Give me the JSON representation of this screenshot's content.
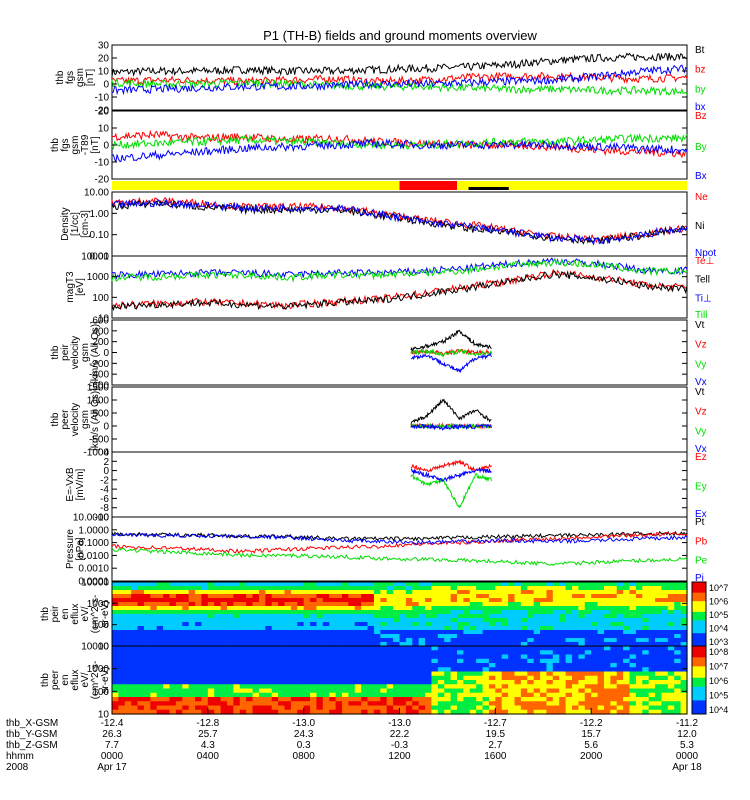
{
  "title": "P1 (TH-B) fields and ground moments overview",
  "colors": {
    "black": "#000000",
    "red": "#ff0000",
    "green": "#00dd00",
    "blue": "#0000ff",
    "yellow": "#ffff00"
  },
  "chart_data": [
    {
      "type": "line",
      "panel": "fgs",
      "ylabel": [
        "thb",
        "fgs",
        "gsm",
        "[nT]"
      ],
      "ylim": [
        -20,
        30
      ],
      "yticks": [
        "30",
        "20",
        "10",
        "0",
        "-10",
        "-20"
      ],
      "series": [
        {
          "name": "Bt",
          "color": "black",
          "values": [
            9,
            10,
            10,
            11,
            10,
            10,
            11,
            12,
            13,
            15,
            18,
            20,
            21,
            21
          ]
        },
        {
          "name": "bz",
          "color": "red",
          "values": [
            2,
            3,
            3,
            2,
            3,
            4,
            2,
            3,
            5,
            6,
            6,
            5,
            4,
            5
          ]
        },
        {
          "name": "by",
          "color": "green",
          "values": [
            1,
            0,
            0,
            1,
            0,
            -1,
            -2,
            -2,
            -3,
            -4,
            -4,
            -5,
            -5,
            -6
          ]
        },
        {
          "name": "bx",
          "color": "blue",
          "values": [
            -5,
            -4,
            -3,
            -2,
            -2,
            -1,
            0,
            0,
            1,
            2,
            3,
            6,
            10,
            12
          ]
        }
      ]
    },
    {
      "type": "line",
      "panel": "fgs-dip",
      "ylabel": [
        "thb",
        "fgs",
        "gsm",
        "-T89",
        "[nT]"
      ],
      "ylim": [
        -20,
        20
      ],
      "yticks": [
        "20",
        "10",
        "0",
        "-10",
        "-20"
      ],
      "series": [
        {
          "name": "Bz",
          "color": "red",
          "values": [
            5,
            6,
            4,
            5,
            3,
            4,
            2,
            1,
            0,
            0,
            -1,
            -3,
            -4,
            -5
          ]
        },
        {
          "name": "By",
          "color": "green",
          "values": [
            0,
            1,
            2,
            3,
            2,
            1,
            0,
            0,
            1,
            2,
            2,
            3,
            4,
            4
          ]
        },
        {
          "name": "Bx",
          "color": "blue",
          "values": [
            -8,
            -6,
            -4,
            -2,
            -1,
            0,
            1,
            0,
            0,
            0,
            0,
            -1,
            -2,
            -3
          ]
        }
      ]
    },
    {
      "type": "bar",
      "panel": "mode-bar",
      "segments": [
        {
          "color": "yellow",
          "from": 0.0,
          "to": 0.5
        },
        {
          "color": "red",
          "from": 0.5,
          "to": 0.6
        },
        {
          "color": "yellow",
          "from": 0.6,
          "to": 1.0
        }
      ]
    },
    {
      "type": "line",
      "panel": "density",
      "log": true,
      "ylabel": [
        "Density",
        "[1/cc]",
        "[cm-3]"
      ],
      "ylim": [
        0.01,
        10
      ],
      "yticks": [
        "10.00",
        "1.00",
        "0.10",
        "0.01"
      ],
      "series": [
        {
          "name": "Ne",
          "color": "red",
          "values": [
            3,
            4,
            3,
            2,
            2,
            2,
            1,
            0.5,
            0.3,
            0.15,
            0.08,
            0.06,
            0.1,
            0.2
          ]
        },
        {
          "name": "Ni",
          "color": "black",
          "values": [
            2,
            3,
            2,
            1.5,
            1.5,
            1.5,
            0.8,
            0.4,
            0.2,
            0.12,
            0.07,
            0.05,
            0.09,
            0.18
          ]
        },
        {
          "name": "Npot",
          "color": "blue",
          "values": [
            2.5,
            3,
            2.5,
            1.8,
            1.8,
            1.8,
            0.9,
            0.4,
            0.25,
            0.13,
            0.07,
            0.05,
            0.09,
            0.2
          ]
        }
      ]
    },
    {
      "type": "line",
      "panel": "temperature",
      "log": true,
      "ylabel": [
        "magT3",
        "[eV]"
      ],
      "ylim": [
        10,
        10000
      ],
      "yticks": [
        "10000",
        "1000",
        "100",
        "10"
      ],
      "series": [
        {
          "name": "Te⊥",
          "color": "red",
          "values": [
            40,
            50,
            60,
            50,
            40,
            60,
            80,
            150,
            300,
            600,
            1500,
            900,
            400,
            300
          ]
        },
        {
          "name": "Tell",
          "color": "black",
          "values": [
            35,
            45,
            55,
            45,
            35,
            55,
            70,
            130,
            260,
            550,
            1300,
            800,
            350,
            250
          ]
        },
        {
          "name": "Ti⊥",
          "color": "blue",
          "values": [
            1200,
            1300,
            1500,
            1500,
            1200,
            1500,
            1500,
            1800,
            2500,
            4000,
            6000,
            4000,
            2000,
            2000
          ]
        },
        {
          "name": "Till",
          "color": "green",
          "values": [
            900,
            1000,
            1200,
            1200,
            900,
            1200,
            1200,
            1500,
            2000,
            3500,
            5000,
            3500,
            1800,
            1800
          ]
        }
      ]
    },
    {
      "type": "line",
      "panel": "peir-velocity",
      "ylabel": [
        "thb",
        "peir",
        "velocity",
        "gsm",
        "[km/s (All Qs)]"
      ],
      "ylim": [
        -600,
        600
      ],
      "yticks": [
        "600",
        "400",
        "200",
        "0",
        "-200",
        "-400",
        "-600"
      ],
      "series": [
        {
          "name": "Vt",
          "color": "black",
          "values": [
            50,
            120,
            200,
            400,
            150,
            100
          ]
        },
        {
          "name": "Vz",
          "color": "red",
          "values": [
            0,
            20,
            -20,
            30,
            0,
            10
          ]
        },
        {
          "name": "Vy",
          "color": "green",
          "values": [
            -10,
            30,
            -40,
            20,
            -30,
            0
          ]
        },
        {
          "name": "Vx",
          "color": "blue",
          "values": [
            -100,
            -50,
            -200,
            -350,
            -100,
            -50
          ]
        }
      ]
    },
    {
      "type": "line",
      "panel": "peer-velocity",
      "ylabel": [
        "thb",
        "peer",
        "velocity",
        "gsm",
        "[km/s (All Qs)]"
      ],
      "ylim": [
        -1000,
        1500
      ],
      "yticks": [
        "1500",
        "1000",
        "500",
        "0",
        "-500",
        "-1000"
      ],
      "series": [
        {
          "name": "Vt",
          "color": "black",
          "values": [
            100,
            400,
            1000,
            300,
            600,
            200
          ]
        },
        {
          "name": "Vz",
          "color": "red",
          "values": [
            0,
            0,
            10,
            0,
            0,
            0
          ]
        },
        {
          "name": "Vy",
          "color": "green",
          "values": [
            0,
            0,
            0,
            0,
            0,
            0
          ]
        },
        {
          "name": "Vx",
          "color": "blue",
          "values": [
            -50,
            0,
            -80,
            -20,
            -30,
            0
          ]
        }
      ]
    },
    {
      "type": "line",
      "panel": "efield",
      "ylabel": [
        "E=-VxB",
        "[mV/m]"
      ],
      "ylim": [
        -10,
        4
      ],
      "yticks": [
        "4",
        "2",
        "0",
        "-2",
        "-4",
        "-6",
        "-8",
        "-10"
      ],
      "series": [
        {
          "name": "Ez",
          "color": "red",
          "values": [
            1,
            0,
            1,
            2,
            0,
            1
          ]
        },
        {
          "name": "Ey",
          "color": "green",
          "values": [
            -1,
            -3,
            -2,
            -8,
            -1,
            -2
          ]
        },
        {
          "name": "Ex",
          "color": "blue",
          "values": [
            0,
            -1,
            -2,
            -1,
            0,
            0
          ]
        }
      ]
    },
    {
      "type": "line",
      "panel": "pressure",
      "log": true,
      "ylabel": [
        "Pressure",
        "[nPa]"
      ],
      "ylim": [
        0.0001,
        10
      ],
      "yticks": [
        "10.0000",
        "1.0000",
        "0.1000",
        "0.0100",
        "0.0010",
        "0.0001"
      ],
      "series": [
        {
          "name": "Pt",
          "color": "black",
          "values": [
            0.5,
            0.4,
            0.4,
            0.3,
            0.3,
            0.2,
            0.2,
            0.2,
            0.25,
            0.3,
            0.35,
            0.4,
            0.5,
            0.5
          ]
        },
        {
          "name": "Pb",
          "color": "red",
          "values": [
            0.05,
            0.04,
            0.03,
            0.02,
            0.03,
            0.04,
            0.05,
            0.08,
            0.1,
            0.15,
            0.2,
            0.3,
            0.4,
            0.5
          ]
        },
        {
          "name": "Pe",
          "color": "green",
          "values": [
            0.03,
            0.02,
            0.015,
            0.01,
            0.01,
            0.008,
            0.006,
            0.005,
            0.004,
            0.003,
            0.002,
            0.003,
            0.004,
            0.005
          ]
        },
        {
          "name": "Pi",
          "color": "blue",
          "values": [
            0.4,
            0.35,
            0.35,
            0.3,
            0.25,
            0.15,
            0.12,
            0.1,
            0.12,
            0.15,
            0.12,
            0.15,
            0.2,
            0.25
          ]
        }
      ]
    },
    {
      "type": "heatmap",
      "panel": "peir-eflux",
      "ylabel": [
        "thb",
        "peir",
        "en",
        "eflux",
        "eV/",
        "(cm^2-s-",
        "sr-eV)"
      ],
      "yticks": [
        "10000",
        "1000",
        "100",
        "10"
      ],
      "colorbar_ticks": [
        "10^7",
        "10^6",
        "10^5",
        "10^4",
        "10^3"
      ]
    },
    {
      "type": "heatmap",
      "panel": "peer-eflux",
      "ylabel": [
        "thb",
        "peer",
        "en",
        "eflux",
        "eV/",
        "(cm^2-s-",
        "sr-eV)"
      ],
      "yticks": [
        "10000",
        "1000",
        "100",
        "10"
      ],
      "colorbar_ticks": [
        "10^8",
        "10^7",
        "10^6",
        "10^5",
        "10^4"
      ]
    }
  ],
  "xaxis": {
    "rows": [
      {
        "label": "thb_X-GSM",
        "values": [
          "-12.4",
          "-12.8",
          "-13.0",
          "-13.0",
          "-12.7",
          "-12.2",
          "-11.2"
        ]
      },
      {
        "label": "thb_Y-GSM",
        "values": [
          "26.3",
          "25.7",
          "24.3",
          "22.2",
          "19.5",
          "15.7",
          "12.0"
        ]
      },
      {
        "label": "thb_Z-GSM",
        "values": [
          "7.7",
          "4.3",
          "0.3",
          "-0.3",
          "2.7",
          "5.6",
          "5.3"
        ]
      },
      {
        "label": "hhmm",
        "values": [
          "0000",
          "0400",
          "0800",
          "1200",
          "1600",
          "2000",
          "0000"
        ]
      },
      {
        "label": "2008",
        "values": [
          "Apr 17",
          "",
          "",
          "",
          "",
          "",
          "Apr 18"
        ]
      }
    ]
  }
}
